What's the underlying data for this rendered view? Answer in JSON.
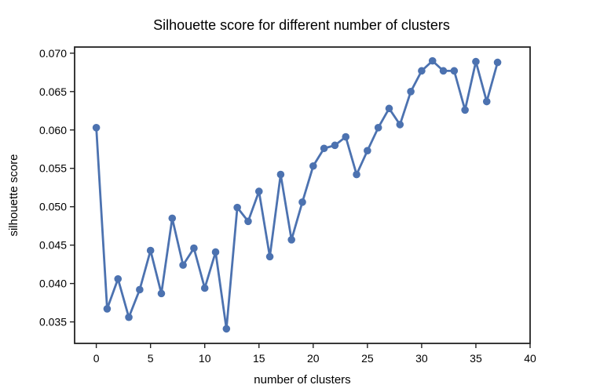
{
  "chart_data": {
    "type": "line",
    "title": "Silhouette score for different number of clusters",
    "xlabel": "number of clusters",
    "ylabel": "silhouette score",
    "xlim": [
      -2,
      40
    ],
    "ylim": [
      0.0322,
      0.0708
    ],
    "xticks": [
      0,
      5,
      10,
      15,
      20,
      25,
      30,
      35,
      40
    ],
    "yticks": [
      0.035,
      0.04,
      0.045,
      0.05,
      0.055,
      0.06,
      0.065,
      0.07
    ],
    "xtick_labels": [
      "0",
      "5",
      "10",
      "15",
      "20",
      "25",
      "30",
      "35",
      "40"
    ],
    "ytick_labels": [
      "0.035",
      "0.040",
      "0.045",
      "0.050",
      "0.055",
      "0.060",
      "0.065",
      "0.070"
    ],
    "grid": false,
    "series": [
      {
        "color": "#4c72b0",
        "x": [
          0,
          1,
          2,
          3,
          4,
          5,
          6,
          7,
          8,
          9,
          10,
          11,
          12,
          13,
          14,
          15,
          16,
          17,
          18,
          19,
          20,
          21,
          22,
          23,
          24,
          25,
          26,
          27,
          28,
          29,
          30,
          31,
          32,
          33,
          34,
          35,
          36,
          37
        ],
        "y": [
          0.0603,
          0.0367,
          0.0406,
          0.0356,
          0.0392,
          0.0443,
          0.0387,
          0.0485,
          0.0424,
          0.0446,
          0.0394,
          0.0441,
          0.0341,
          0.0499,
          0.0481,
          0.052,
          0.0435,
          0.0542,
          0.0457,
          0.0506,
          0.0553,
          0.0576,
          0.058,
          0.0591,
          0.0542,
          0.0573,
          0.0603,
          0.0628,
          0.0607,
          0.065,
          0.0677,
          0.069,
          0.0677,
          0.0677,
          0.0626,
          0.0689,
          0.0637,
          0.0688
        ]
      }
    ]
  }
}
